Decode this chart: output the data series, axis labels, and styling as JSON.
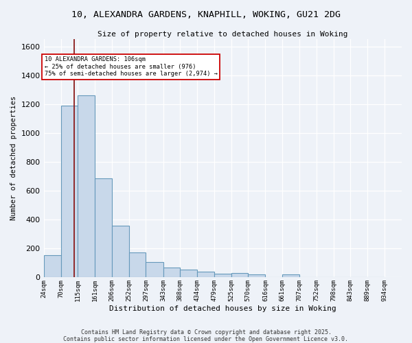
{
  "title": "10, ALEXANDRA GARDENS, KNAPHILL, WOKING, GU21 2DG",
  "subtitle": "Size of property relative to detached houses in Woking",
  "xlabel": "Distribution of detached houses by size in Woking",
  "ylabel": "Number of detached properties",
  "bin_edges": [
    24,
    70,
    115,
    161,
    206,
    252,
    297,
    343,
    388,
    434,
    479,
    525,
    570,
    616,
    661,
    707,
    752,
    798,
    843,
    889,
    934
  ],
  "bar_heights": [
    155,
    1190,
    1260,
    685,
    360,
    175,
    105,
    70,
    55,
    40,
    25,
    30,
    20,
    0,
    20,
    0,
    0,
    0,
    0,
    0
  ],
  "bar_color": "#c8d8ea",
  "bar_edge_color": "#6699bb",
  "ylim": [
    0,
    1650
  ],
  "yticks": [
    0,
    200,
    400,
    600,
    800,
    1000,
    1200,
    1400,
    1600
  ],
  "property_size": 106,
  "vline_color": "#8b1a1a",
  "annotation_text": "10 ALEXANDRA GARDENS: 106sqm\n← 25% of detached houses are smaller (976)\n75% of semi-detached houses are larger (2,974) →",
  "annotation_box_facecolor": "#ffffff",
  "annotation_border_color": "#cc0000",
  "background_color": "#eef2f8",
  "grid_color": "#ffffff",
  "footnote1": "Contains HM Land Registry data © Crown copyright and database right 2025.",
  "footnote2": "Contains public sector information licensed under the Open Government Licence v3.0."
}
